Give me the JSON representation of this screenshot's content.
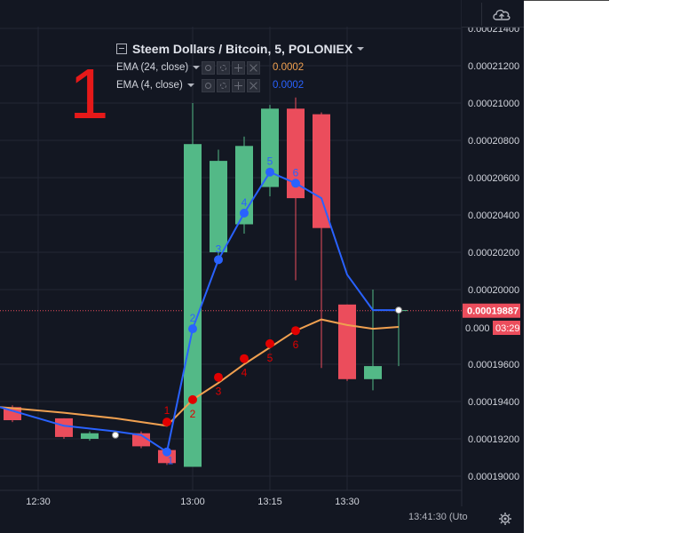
{
  "legend": {
    "symbol": "Steem Dollars / Bitcoin, 5, POLONIEX",
    "indicators": [
      {
        "name": "EMA (24, close)",
        "value": "0.0002",
        "color": "#ff9800"
      },
      {
        "name": "EMA (4, close)",
        "value": "0.0002",
        "color": "#2962ff"
      }
    ]
  },
  "annotation": {
    "text": "1",
    "color": "#e61919"
  },
  "footer": {
    "clock": "13:41:30 (Uto"
  },
  "icons": {
    "top": "cloud-upload-icon",
    "bottom": "gear-icon"
  },
  "colors": {
    "background": "#131722",
    "up": "#53b987",
    "down": "#eb4d5c",
    "ema24": "#f0a050",
    "ema4": "#2962ff",
    "marker_red": "#e00000"
  },
  "chart_data": {
    "type": "candlestick",
    "title": "Steem Dollars / Bitcoin, 5, POLONIEX",
    "xlabel": "",
    "ylabel": "",
    "x_ticks": [
      "12:30",
      "13:00",
      "13:15",
      "13:30"
    ],
    "y_ticks": [
      "0.00019000",
      "0.00019200",
      "0.00019400",
      "0.00019600",
      "0.00020000",
      "0.00020200",
      "0.00020400",
      "0.00020600",
      "0.00020800",
      "0.00021000",
      "0.00021200",
      "0.00021400"
    ],
    "ylim": [
      0.000188,
      0.0002155
    ],
    "grid": true,
    "candles": [
      {
        "time": "12:25",
        "open": 0.0001937,
        "close": 0.000193,
        "high": 0.0001938,
        "low": 0.0001929
      },
      {
        "time": "12:35",
        "open": 0.0001931,
        "close": 0.0001921,
        "high": 0.0001931,
        "low": 0.000192
      },
      {
        "time": "12:40",
        "open": 0.000192,
        "close": 0.0001923,
        "high": 0.0001924,
        "low": 0.0001919
      },
      {
        "time": "12:50",
        "open": 0.0001923,
        "close": 0.0001916,
        "high": 0.0001924,
        "low": 0.0001915
      },
      {
        "time": "12:55",
        "open": 0.0001914,
        "close": 0.0001907,
        "high": 0.0001914,
        "low": 0.0001906
      },
      {
        "time": "13:00",
        "open": 0.0001905,
        "close": 0.0002078,
        "high": 0.00021,
        "low": 0.0001905
      },
      {
        "time": "13:05",
        "open": 0.000202,
        "close": 0.0002069,
        "high": 0.0002075,
        "low": 0.0002015
      },
      {
        "time": "13:10",
        "open": 0.0002035,
        "close": 0.0002077,
        "high": 0.0002082,
        "low": 0.000203
      },
      {
        "time": "13:15",
        "open": 0.0002055,
        "close": 0.0002097,
        "high": 0.0002099,
        "low": 0.000205
      },
      {
        "time": "13:20",
        "open": 0.0002097,
        "close": 0.0002049,
        "high": 0.0002103,
        "low": 0.0002005
      },
      {
        "time": "13:25",
        "open": 0.0002094,
        "close": 0.0002033,
        "high": 0.0002095,
        "low": 0.0001958
      },
      {
        "time": "13:30",
        "open": 0.0001992,
        "close": 0.0001952,
        "high": 0.0001992,
        "low": 0.0001951
      },
      {
        "time": "13:35",
        "open": 0.0001952,
        "close": 0.0001959,
        "high": 0.0002,
        "low": 0.0001946
      },
      {
        "time": "13:40",
        "open": 0.0001989,
        "close": 0.0001989,
        "high": 0.0001989,
        "low": 0.0001959
      }
    ],
    "series": [
      {
        "name": "EMA (24, close)",
        "x": [
          "12:20",
          "12:35",
          "12:45",
          "12:55",
          "13:00",
          "13:05",
          "13:10",
          "13:15",
          "13:20",
          "13:25",
          "13:30",
          "13:35",
          "13:40"
        ],
        "values": [
          0.0001937,
          0.0001934,
          0.0001931,
          0.0001927,
          0.0001941,
          0.000195,
          0.000196,
          0.0001969,
          0.0001978,
          0.0001984,
          0.0001981,
          0.0001979,
          0.000198
        ]
      },
      {
        "name": "EMA (4, close)",
        "x": [
          "12:20",
          "12:35",
          "12:45",
          "12:50",
          "12:55",
          "13:00",
          "13:05",
          "13:10",
          "13:15",
          "13:20",
          "13:25",
          "13:30",
          "13:35",
          "13:40"
        ],
        "values": [
          0.0001937,
          0.0001927,
          0.0001924,
          0.0001922,
          0.0001913,
          0.0001979,
          0.0002016,
          0.0002041,
          0.0002063,
          0.0002057,
          0.0002049,
          0.0002008,
          0.0001989,
          0.0001989
        ]
      }
    ],
    "markers": [
      {
        "series": "EMA (24, close)",
        "labels": [
          {
            "time": "12:55",
            "value": 0.0001929,
            "label": "1"
          },
          {
            "time": "13:00",
            "value": 0.0001941,
            "label": "2"
          },
          {
            "time": "13:05",
            "value": 0.0001953,
            "label": "3"
          },
          {
            "time": "13:10",
            "value": 0.0001963,
            "label": "4"
          },
          {
            "time": "13:15",
            "value": 0.0001971,
            "label": "5"
          },
          {
            "time": "13:20",
            "value": 0.0001978,
            "label": "6"
          }
        ]
      },
      {
        "series": "EMA (4, close)",
        "labels": [
          {
            "time": "12:55",
            "value": 0.0001913,
            "label": "1"
          },
          {
            "time": "13:00",
            "value": 0.0001979,
            "label": "2"
          },
          {
            "time": "13:05",
            "value": 0.0002016,
            "label": "3"
          },
          {
            "time": "13:10",
            "value": 0.0002041,
            "label": "4"
          },
          {
            "time": "13:15",
            "value": 0.0002063,
            "label": "5"
          },
          {
            "time": "13:20",
            "value": 0.0002057,
            "label": "6"
          }
        ]
      }
    ],
    "price_line": {
      "value": 0.00019887,
      "label": "0.00019887",
      "color": "#eb4d5c"
    },
    "ema_tag": {
      "value": 0.000198,
      "label": "0.000",
      "countdown": "03:29"
    }
  }
}
